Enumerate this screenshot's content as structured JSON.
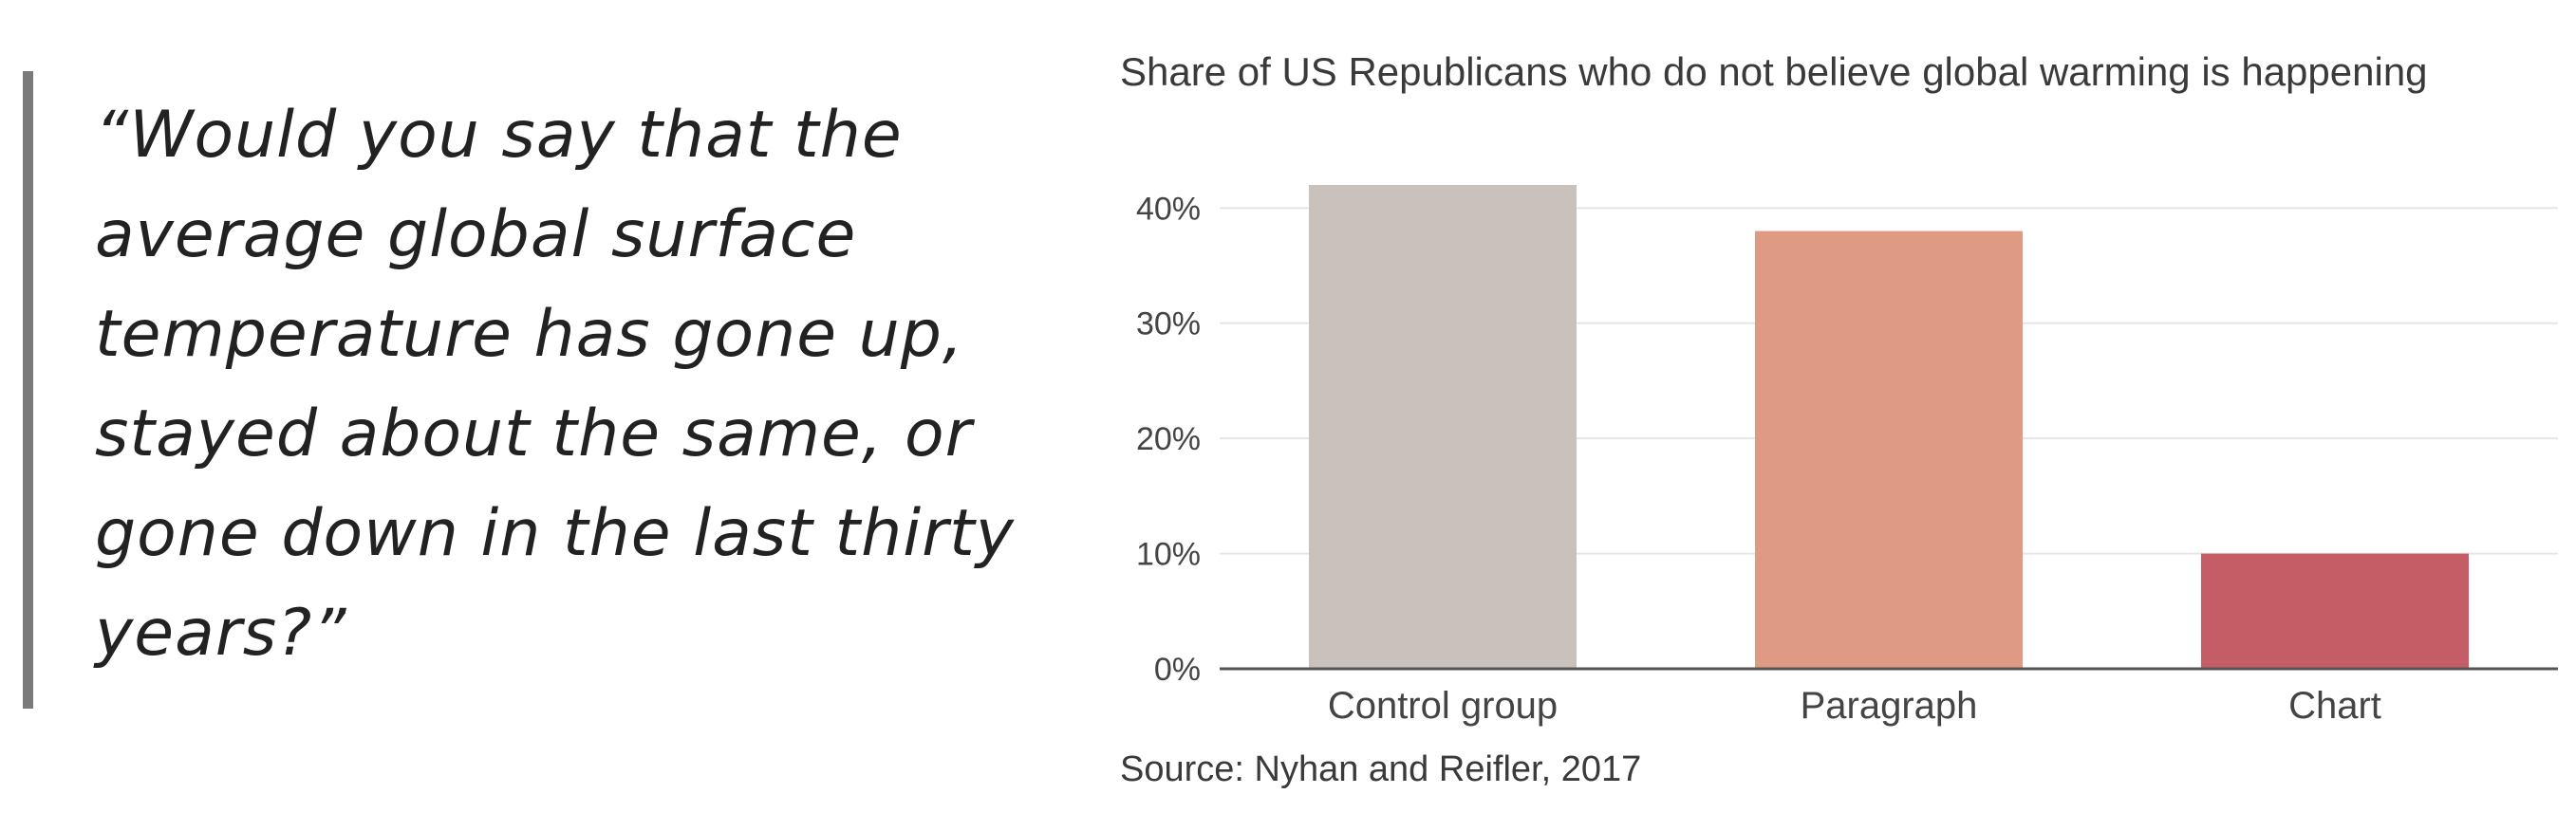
{
  "quote": {
    "lines": [
      "“Would you say that the",
      "average global surface",
      "temperature has gone up,",
      "stayed about the same, or",
      "gone down in the last thirty",
      "years?”"
    ]
  },
  "chart_data": {
    "type": "bar",
    "title": "Share of US Republicans who do not believe global warming is happening",
    "categories": [
      "Control group",
      "Paragraph",
      "Chart"
    ],
    "values": [
      42,
      38,
      10
    ],
    "colors": [
      "#c9c1bb",
      "#df9a84",
      "#c55d67"
    ],
    "ylim": [
      0,
      42
    ],
    "yticks": [
      0,
      10,
      20,
      30,
      40
    ],
    "ytick_labels": [
      "0%",
      "10%",
      "20%",
      "30%",
      "40%"
    ],
    "grid": true,
    "xlabel": "",
    "ylabel": ""
  },
  "source": "Source: Nyhan and Reifler, 2017"
}
